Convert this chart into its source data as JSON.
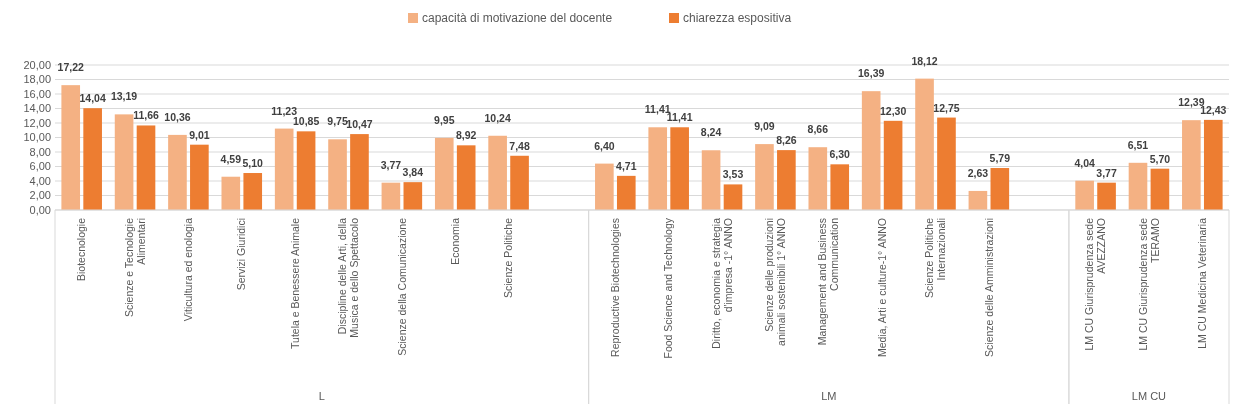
{
  "chart_data": {
    "type": "bar",
    "categories": [
      "Biotecnologie",
      "Scienze e Tecnologie Alimentari",
      "Viticultura ed enologia",
      "Servizi Giuridici",
      "Tutela e Benessere Animale",
      "Discipline delle Arti, della Musica e dello Spettacolo",
      "Scienze della Comunicazione",
      "Economia",
      "Scienze Politiche",
      null,
      "Reproductive Biotechnologies",
      "Food Science and Technology",
      "Diritto, economia e strategia d'impresa -1° ANNO",
      "Scienze delle produzioni animali sostenibili 1° ANNO",
      "Management and Business Communication",
      "Media, Arti e culture-1° ANNO",
      "Scienze Politiche Internazionali",
      "Scienze delle Amministrazioni",
      null,
      "LM CU  Giurisprudenza sede AVEZZANO",
      "LM CU Giurisprudenza  sede TERAMO",
      "LM CU Medicina Veterinaria"
    ],
    "series": [
      {
        "name": "capacità di motivazione del docente",
        "color": "#f4b183",
        "values": [
          17.22,
          13.19,
          10.36,
          4.59,
          11.23,
          9.75,
          3.77,
          9.95,
          10.24,
          null,
          6.4,
          11.41,
          8.24,
          9.09,
          8.66,
          16.39,
          18.12,
          2.63,
          null,
          4.04,
          6.51,
          12.39
        ],
        "value_labels": [
          "17,22",
          "13,19",
          "10,36",
          "4,59",
          "11,23",
          "9,75",
          "3,77",
          "9,95",
          "10,24",
          null,
          "6,40",
          "11,41",
          "8,24",
          "9,09",
          "8,66",
          "16,39",
          "18,12",
          "2,63",
          null,
          "4,04",
          "6,51",
          "12,39"
        ]
      },
      {
        "name": "chiarezza espositiva",
        "color": "#ed7d31",
        "values": [
          14.04,
          11.66,
          9.01,
          5.1,
          10.85,
          10.47,
          3.84,
          8.92,
          7.48,
          null,
          4.71,
          11.41,
          3.53,
          8.26,
          6.3,
          12.3,
          12.75,
          5.79,
          null,
          3.77,
          5.7,
          12.43
        ],
        "value_labels": [
          "14,04",
          "11,66",
          "9,01",
          "5,10",
          "10,85",
          "10,47",
          "3,84",
          "8,92",
          "7,48",
          null,
          "4,71",
          "11,41",
          "3,53",
          "8,26",
          "6,30",
          "12,30",
          "12,75",
          "5,79",
          null,
          "3,77",
          "5,70",
          "12,43"
        ]
      }
    ],
    "ylim": [
      0,
      20
    ],
    "yticks": [
      {
        "value": 0,
        "label": "0,00"
      },
      {
        "value": 2,
        "label": "2,00"
      },
      {
        "value": 4,
        "label": "4,00"
      },
      {
        "value": 6,
        "label": "6,00"
      },
      {
        "value": 8,
        "label": "8,00"
      },
      {
        "value": 10,
        "label": "10,00"
      },
      {
        "value": 12,
        "label": "12,00"
      },
      {
        "value": 14,
        "label": "14,00"
      },
      {
        "value": 16,
        "label": "16,00"
      },
      {
        "value": 18,
        "label": "18,00"
      },
      {
        "value": 20,
        "label": "20,00"
      }
    ],
    "grid": "y",
    "legend": "top",
    "annotations": [
      "L",
      "LM",
      "LM CU"
    ]
  }
}
